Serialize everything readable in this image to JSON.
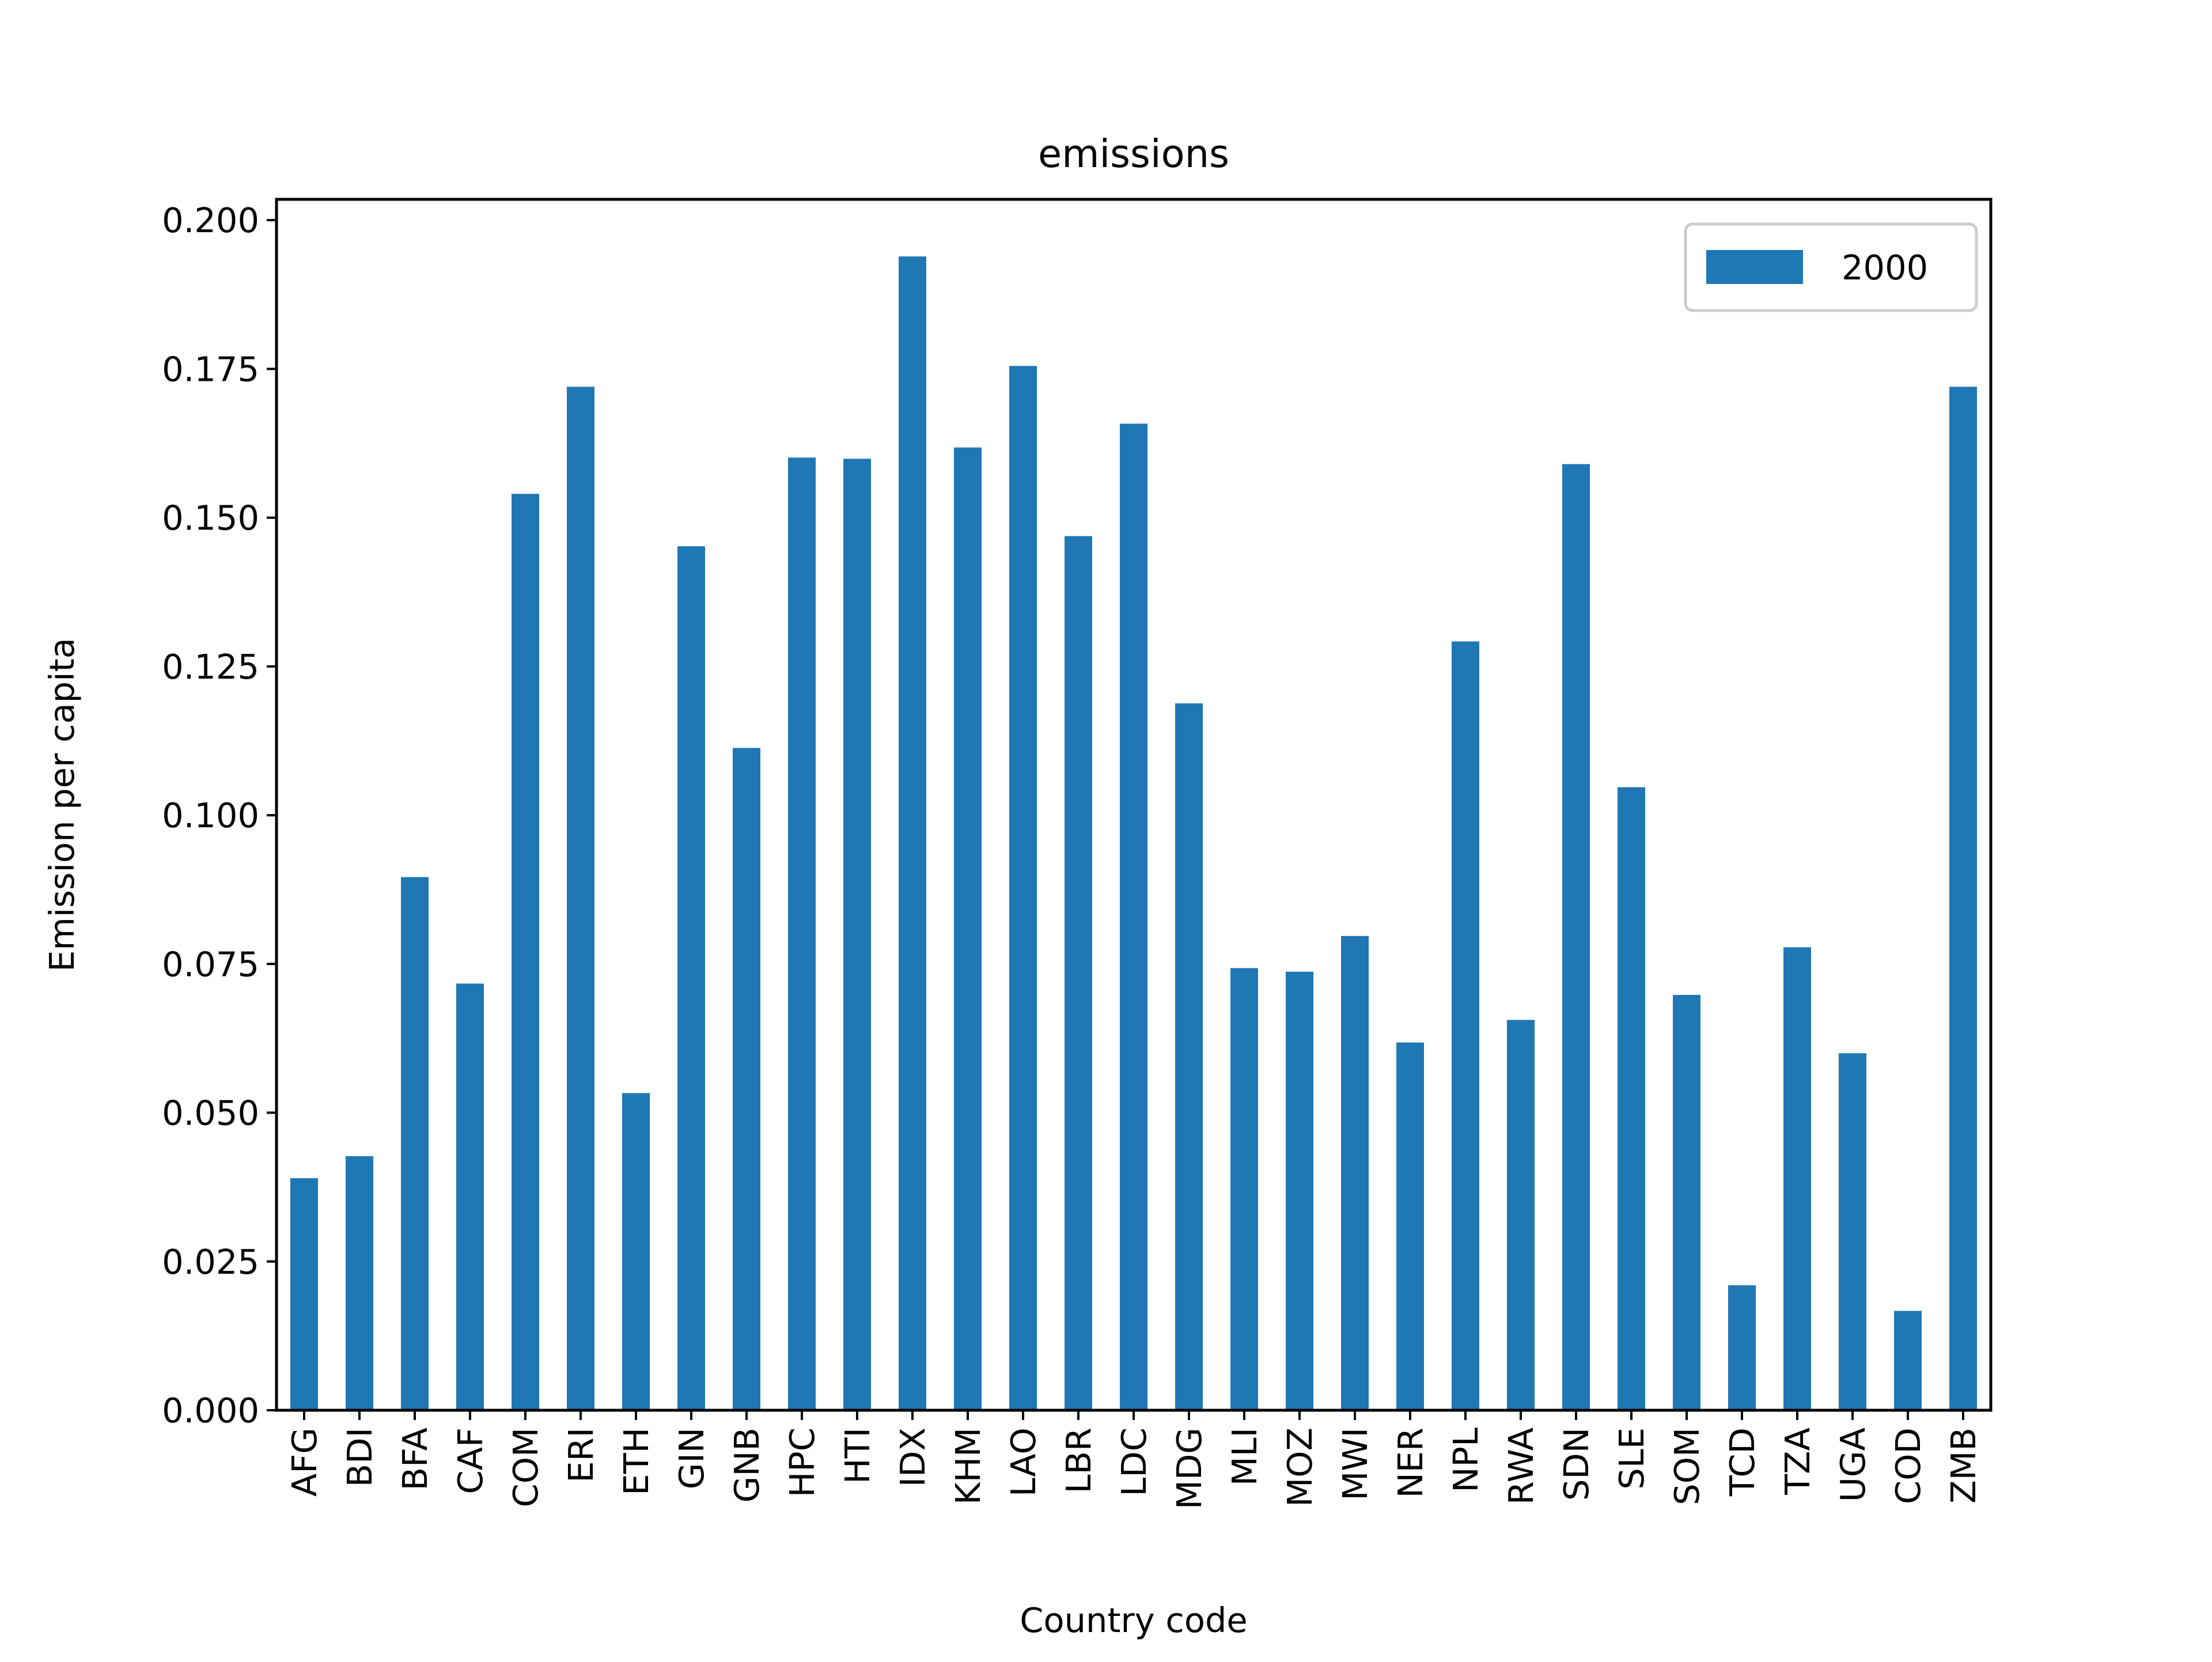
{
  "chart_data": {
    "type": "bar",
    "title": "emissions",
    "xlabel": "Country code",
    "ylabel": "Emission per capita",
    "ylim": [
      0,
      0.2035
    ],
    "yticks": [
      "0.000",
      "0.025",
      "0.050",
      "0.075",
      "0.100",
      "0.125",
      "0.150",
      "0.175",
      "0.200"
    ],
    "ytick_values": [
      0,
      0.025,
      0.05,
      0.075,
      0.1,
      0.125,
      0.15,
      0.175,
      0.2
    ],
    "grid": false,
    "legend_position": "top-right",
    "categories": [
      "AFG",
      "BDI",
      "BFA",
      "CAF",
      "COM",
      "ERI",
      "ETH",
      "GIN",
      "GNB",
      "HPC",
      "HTI",
      "IDX",
      "KHM",
      "LAO",
      "LBR",
      "LDC",
      "MDG",
      "MLI",
      "MOZ",
      "MWI",
      "NER",
      "NPL",
      "RWA",
      "SDN",
      "SLE",
      "SOM",
      "TCD",
      "TZA",
      "UGA",
      "COD",
      "ZMB"
    ],
    "series": [
      {
        "name": "2000",
        "color": "#1f77b4",
        "values": [
          0.039,
          0.0427,
          0.0896,
          0.0717,
          0.154,
          0.172,
          0.0533,
          0.1452,
          0.1113,
          0.1601,
          0.1599,
          0.1939,
          0.1618,
          0.1755,
          0.1469,
          0.1658,
          0.1188,
          0.0743,
          0.0737,
          0.0797,
          0.0618,
          0.1292,
          0.0656,
          0.159,
          0.1047,
          0.0698,
          0.021,
          0.0778,
          0.06,
          0.0167,
          0.172
        ]
      }
    ]
  }
}
